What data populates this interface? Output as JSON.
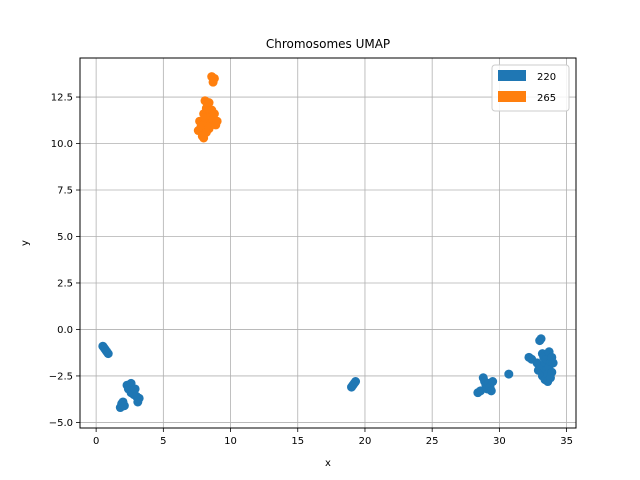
{
  "chart_data": {
    "type": "scatter",
    "title": "Chromosomes UMAP",
    "xlabel": "x",
    "ylabel": "y",
    "xlim": [
      -1.2,
      35.7
    ],
    "ylim": [
      -5.3,
      14.6
    ],
    "xticks": [
      0,
      5,
      10,
      15,
      20,
      25,
      30,
      35
    ],
    "yticks": [
      -5.0,
      -2.5,
      0.0,
      2.5,
      5.0,
      7.5,
      10.0,
      12.5
    ],
    "ytick_labels": [
      "−5.0",
      "−2.5",
      "0.0",
      "2.5",
      "5.0",
      "7.5",
      "10.0",
      "12.5"
    ],
    "grid": true,
    "legend_position": "top-right",
    "series": [
      {
        "name": "220",
        "color": "#1f77b4",
        "points": [
          [
            0.5,
            -0.9
          ],
          [
            0.6,
            -1.0
          ],
          [
            0.7,
            -1.1
          ],
          [
            0.8,
            -1.2
          ],
          [
            0.9,
            -1.3
          ],
          [
            1.8,
            -4.2
          ],
          [
            1.9,
            -4.0
          ],
          [
            2.0,
            -3.9
          ],
          [
            2.1,
            -4.1
          ],
          [
            2.3,
            -3.0
          ],
          [
            2.4,
            -3.2
          ],
          [
            2.5,
            -3.1
          ],
          [
            2.6,
            -2.9
          ],
          [
            2.6,
            -3.4
          ],
          [
            2.7,
            -3.3
          ],
          [
            2.8,
            -3.5
          ],
          [
            2.9,
            -3.2
          ],
          [
            3.0,
            -3.6
          ],
          [
            3.1,
            -3.9
          ],
          [
            3.2,
            -3.7
          ],
          [
            19.0,
            -3.1
          ],
          [
            19.1,
            -3.0
          ],
          [
            19.2,
            -2.9
          ],
          [
            19.3,
            -2.8
          ],
          [
            28.4,
            -3.4
          ],
          [
            28.6,
            -3.3
          ],
          [
            28.8,
            -2.6
          ],
          [
            28.9,
            -2.8
          ],
          [
            29.0,
            -3.0
          ],
          [
            29.1,
            -3.2
          ],
          [
            29.2,
            -2.9
          ],
          [
            29.3,
            -3.1
          ],
          [
            29.4,
            -3.3
          ],
          [
            29.5,
            -2.8
          ],
          [
            30.7,
            -2.4
          ],
          [
            32.2,
            -1.5
          ],
          [
            32.4,
            -1.6
          ],
          [
            32.8,
            -1.8
          ],
          [
            32.9,
            -2.2
          ],
          [
            33.0,
            -0.6
          ],
          [
            33.1,
            -0.5
          ],
          [
            33.2,
            -1.3
          ],
          [
            33.2,
            -2.5
          ],
          [
            33.3,
            -1.5
          ],
          [
            33.3,
            -2.0
          ],
          [
            33.4,
            -1.8
          ],
          [
            33.4,
            -2.7
          ],
          [
            33.5,
            -2.2
          ],
          [
            33.5,
            -1.6
          ],
          [
            33.6,
            -2.4
          ],
          [
            33.6,
            -2.8
          ],
          [
            33.7,
            -1.2
          ],
          [
            33.7,
            -2.0
          ],
          [
            33.8,
            -1.7
          ],
          [
            33.8,
            -2.6
          ],
          [
            33.9,
            -1.5
          ],
          [
            33.9,
            -2.3
          ],
          [
            34.0,
            -1.8
          ]
        ]
      },
      {
        "name": "265",
        "color": "#ff7f0e",
        "points": [
          [
            7.6,
            10.7
          ],
          [
            7.7,
            11.2
          ],
          [
            7.8,
            10.9
          ],
          [
            7.9,
            10.4
          ],
          [
            8.0,
            10.3
          ],
          [
            8.0,
            11.0
          ],
          [
            8.0,
            11.6
          ],
          [
            8.1,
            12.3
          ],
          [
            8.1,
            11.4
          ],
          [
            8.2,
            10.6
          ],
          [
            8.2,
            11.9
          ],
          [
            8.3,
            12.1
          ],
          [
            8.3,
            11.1
          ],
          [
            8.4,
            10.8
          ],
          [
            8.4,
            12.2
          ],
          [
            8.5,
            11.5
          ],
          [
            8.5,
            11.0
          ],
          [
            8.6,
            13.6
          ],
          [
            8.6,
            11.8
          ],
          [
            8.7,
            13.3
          ],
          [
            8.7,
            11.3
          ],
          [
            8.8,
            13.5
          ],
          [
            8.8,
            11.6
          ],
          [
            8.9,
            11.0
          ],
          [
            9.0,
            11.2
          ]
        ]
      }
    ]
  }
}
